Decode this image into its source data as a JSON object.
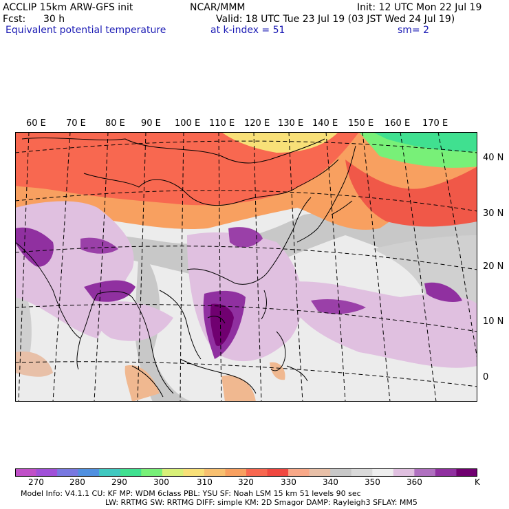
{
  "header": {
    "model": "ACCLIP 15km ARW-GFS init",
    "org": "NCAR/MMM",
    "init": "Init: 12 UTC Mon 22 Jul 19",
    "fcst_label": "Fcst:",
    "fcst_value": "30 h",
    "valid": "Valid: 18 UTC Tue 23 Jul 19 (03 JST Wed 24 Jul 19)",
    "field": "Equivalent potential temperature",
    "level": "at k-index =  51",
    "smooth": "sm= 2"
  },
  "map": {
    "lon_labels": [
      "60 E",
      "70 E",
      "80 E",
      "90 E",
      "100 E",
      "110 E",
      "120 E",
      "130 E",
      "140 E",
      "150 E",
      "160 E",
      "170 E"
    ],
    "lat_labels": [
      "40 N",
      "30 N",
      "20 N",
      "10 N",
      "0"
    ]
  },
  "colorbar": {
    "colors": [
      "#c050c8",
      "#a050d8",
      "#7878e0",
      "#5090e0",
      "#40c8c0",
      "#40e090",
      "#78f078",
      "#d8f078",
      "#f8e078",
      "#f8c070",
      "#f8a060",
      "#f86850",
      "#f04840",
      "#f8a888",
      "#e8c0a8",
      "#c8c8c8",
      "#dadada",
      "#eeeeee",
      "#e0c0e0",
      "#b070c0",
      "#9030a0",
      "#700070"
    ],
    "labels": [
      "270",
      "280",
      "290",
      "300",
      "310",
      "320",
      "330",
      "340",
      "350",
      "360"
    ],
    "unit": "K"
  },
  "footer": {
    "line1": "Model Info: V4.1.1      CU: KF      MP: WDM 6class  PBL: YSU      SF: Noah LSM    15 km    51 levels   90 sec",
    "line2": "LW: RRTMG    SW: RRTMG  DIFF: simple KM: 2D Smagor DAMP: Rayleigh3  SFLAY: MM5"
  }
}
